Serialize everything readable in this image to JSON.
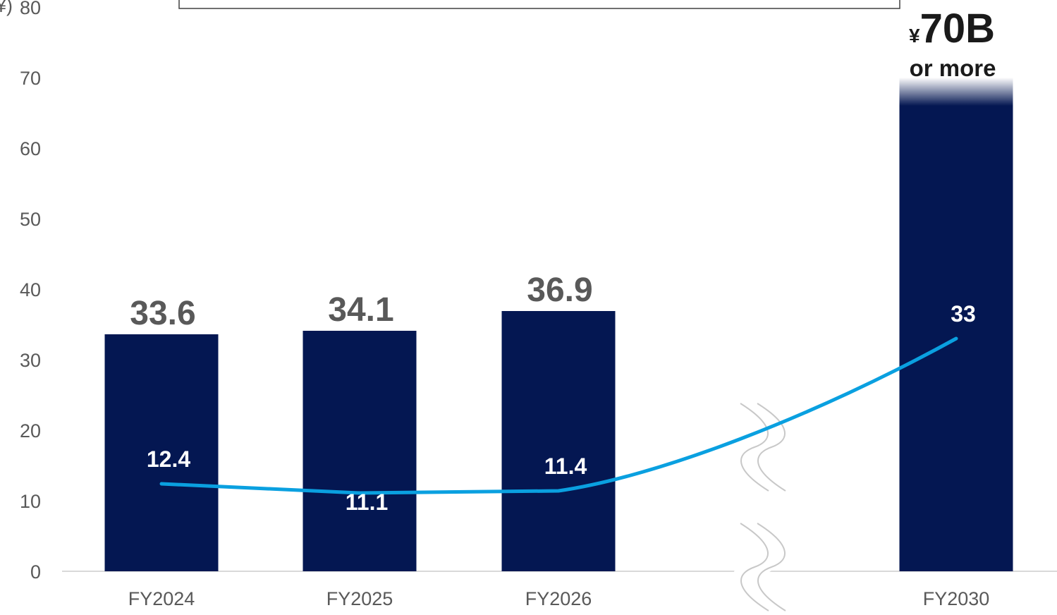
{
  "chart_data": {
    "type": "bar",
    "categories": [
      "FY2024",
      "FY2025",
      "FY2026",
      "",
      "FY2030"
    ],
    "series": [
      {
        "type": "bar",
        "values": [
          33.6,
          34.1,
          36.9,
          null,
          70
        ]
      },
      {
        "type": "line",
        "values": [
          12.4,
          11.1,
          11.4,
          null,
          33
        ]
      }
    ],
    "bar_labels": [
      "33.6",
      "34.1",
      "36.9",
      "",
      ""
    ],
    "line_labels": [
      "12.4",
      "11.1",
      "11.4",
      "",
      "33"
    ],
    "target_label": {
      "currency": "¥",
      "amount": "70B",
      "suffix": "or more"
    },
    "unit_fragment": "¥)",
    "ylim": [
      0,
      80
    ],
    "yticks": [
      "0",
      "10",
      "20",
      "30",
      "40",
      "50",
      "60",
      "70",
      "80"
    ],
    "axis_break_after_category": 3,
    "colors": {
      "bar": "#041752",
      "line": "#0aa0e0",
      "tick_text": "#595959",
      "axis": "#d9d9d9"
    },
    "grid": false,
    "legend": "none"
  }
}
